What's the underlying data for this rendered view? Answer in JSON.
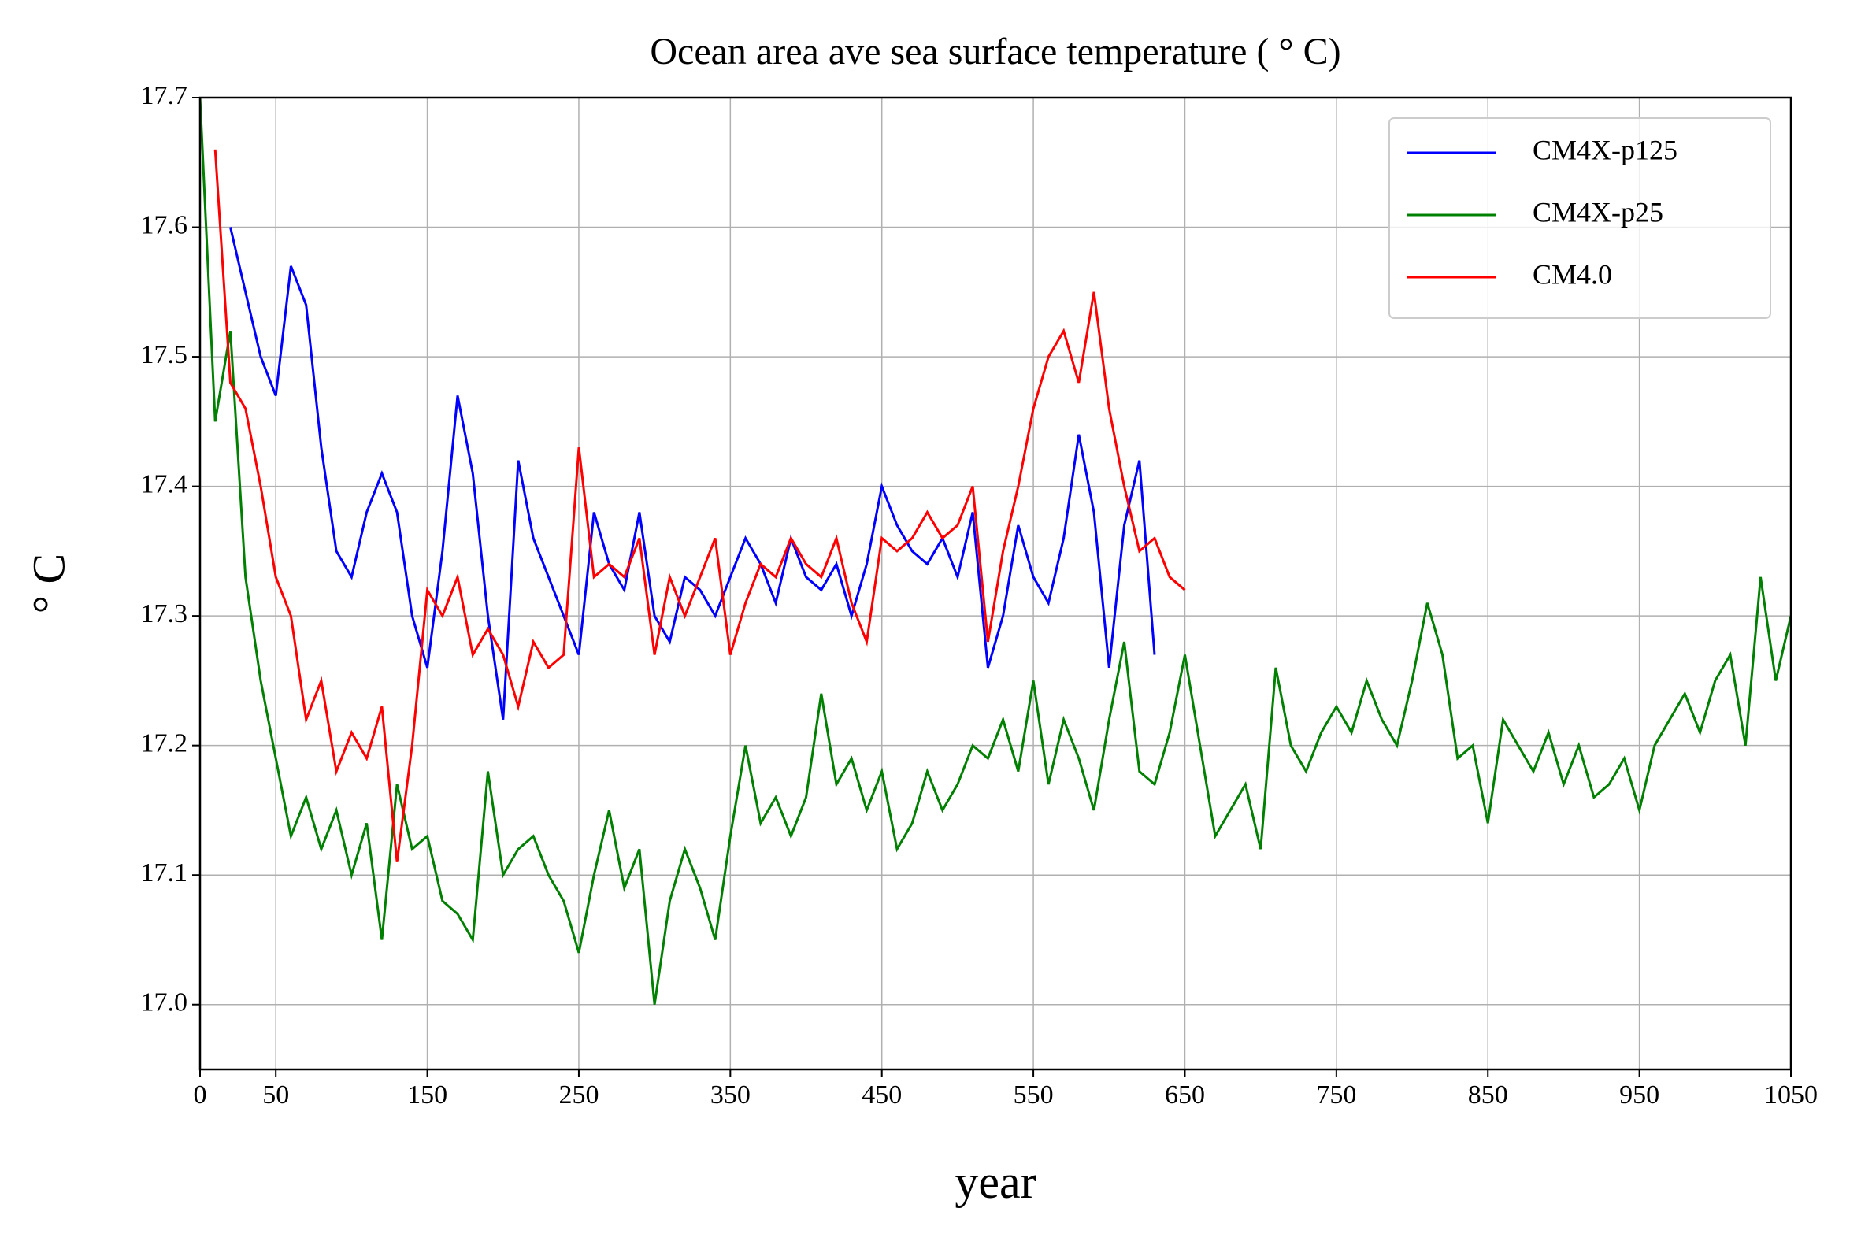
{
  "chart_data": {
    "type": "line",
    "title": "Ocean area ave sea surface temperature ( ° C)",
    "x_label": "year",
    "y_label": "° C",
    "x": [
      0,
      10,
      20,
      30,
      40,
      50,
      60,
      70,
      80,
      90,
      100,
      110,
      120,
      130,
      140,
      150,
      160,
      170,
      180,
      190,
      200,
      210,
      220,
      230,
      240,
      250,
      260,
      270,
      280,
      290,
      300,
      310,
      320,
      330,
      340,
      350,
      360,
      370,
      380,
      390,
      400,
      410,
      420,
      430,
      440,
      450,
      460,
      470,
      480,
      490,
      500,
      510,
      520,
      530,
      540,
      550,
      560,
      570,
      580,
      590,
      600,
      610,
      620,
      630,
      640,
      650,
      660,
      670,
      680,
      690,
      700,
      710,
      720,
      730,
      740,
      750,
      760,
      770,
      780,
      790,
      800,
      810,
      820,
      830,
      840,
      850,
      860,
      870,
      880,
      890,
      900,
      910,
      920,
      930,
      940,
      950,
      960,
      970,
      980,
      990,
      1000,
      1010,
      1020,
      1030,
      1040,
      1050
    ],
    "series": [
      {
        "name": "CM4X-p125",
        "color": "#0000ff",
        "values": [
          null,
          null,
          17.6,
          17.55,
          17.5,
          17.47,
          17.57,
          17.54,
          17.43,
          17.35,
          17.33,
          17.38,
          17.41,
          17.38,
          17.3,
          17.26,
          17.35,
          17.47,
          17.41,
          17.3,
          17.22,
          17.42,
          17.36,
          17.33,
          17.3,
          17.27,
          17.38,
          17.34,
          17.32,
          17.38,
          17.3,
          17.28,
          17.33,
          17.32,
          17.3,
          17.33,
          17.36,
          17.34,
          17.31,
          17.36,
          17.33,
          17.32,
          17.34,
          17.3,
          17.34,
          17.4,
          17.37,
          17.35,
          17.34,
          17.36,
          17.33,
          17.38,
          17.26,
          17.3,
          17.37,
          17.33,
          17.31,
          17.36,
          17.44,
          17.38,
          17.26,
          17.37,
          17.42,
          17.27,
          null,
          null,
          null,
          null,
          null,
          null,
          null,
          null,
          null,
          null,
          null,
          null,
          null,
          null,
          null,
          null,
          null,
          null,
          null,
          null,
          null,
          null,
          null,
          null,
          null,
          null,
          null,
          null,
          null,
          null,
          null,
          null,
          null,
          null,
          null,
          null,
          null,
          null,
          null,
          null,
          null,
          null
        ]
      },
      {
        "name": "CM4X-p25",
        "color": "#008000",
        "values": [
          17.7,
          17.45,
          17.52,
          17.33,
          17.25,
          17.19,
          17.13,
          17.16,
          17.12,
          17.15,
          17.1,
          17.14,
          17.05,
          17.17,
          17.12,
          17.13,
          17.08,
          17.07,
          17.05,
          17.18,
          17.1,
          17.12,
          17.13,
          17.1,
          17.08,
          17.04,
          17.1,
          17.15,
          17.09,
          17.12,
          17.0,
          17.08,
          17.12,
          17.09,
          17.05,
          17.13,
          17.2,
          17.14,
          17.16,
          17.13,
          17.16,
          17.24,
          17.17,
          17.19,
          17.15,
          17.18,
          17.12,
          17.14,
          17.18,
          17.15,
          17.17,
          17.2,
          17.19,
          17.22,
          17.18,
          17.25,
          17.17,
          17.22,
          17.19,
          17.15,
          17.22,
          17.28,
          17.18,
          17.17,
          17.21,
          17.27,
          17.2,
          17.13,
          17.15,
          17.17,
          17.12,
          17.26,
          17.2,
          17.18,
          17.21,
          17.23,
          17.21,
          17.25,
          17.22,
          17.2,
          17.25,
          17.31,
          17.27,
          17.19,
          17.2,
          17.14,
          17.22,
          17.2,
          17.18,
          17.21,
          17.17,
          17.2,
          17.16,
          17.17,
          17.19,
          17.15,
          17.2,
          17.22,
          17.24,
          17.21,
          17.25,
          17.27,
          17.2,
          17.33,
          17.25,
          17.3
        ]
      },
      {
        "name": "CM4.0",
        "color": "#ff0000",
        "values": [
          null,
          17.66,
          17.48,
          17.46,
          17.4,
          17.33,
          17.3,
          17.22,
          17.25,
          17.18,
          17.21,
          17.19,
          17.23,
          17.11,
          17.2,
          17.32,
          17.3,
          17.33,
          17.27,
          17.29,
          17.27,
          17.23,
          17.28,
          17.26,
          17.27,
          17.43,
          17.33,
          17.34,
          17.33,
          17.36,
          17.27,
          17.33,
          17.3,
          17.33,
          17.36,
          17.27,
          17.31,
          17.34,
          17.33,
          17.36,
          17.34,
          17.33,
          17.36,
          17.31,
          17.28,
          17.36,
          17.35,
          17.36,
          17.38,
          17.36,
          17.37,
          17.4,
          17.28,
          17.35,
          17.4,
          17.46,
          17.5,
          17.52,
          17.48,
          17.55,
          17.46,
          17.4,
          17.35,
          17.36,
          17.33,
          17.32,
          null,
          null,
          null,
          null,
          null,
          null,
          null,
          null,
          null,
          null,
          null,
          null,
          null,
          null,
          null,
          null,
          null,
          null,
          null,
          null,
          null,
          null,
          null,
          null,
          null,
          null,
          null,
          null,
          null,
          null,
          null,
          null,
          null,
          null,
          null,
          null,
          null,
          null,
          null,
          null
        ]
      }
    ],
    "xlim": [
      0,
      1050
    ],
    "xticks": [
      0,
      50,
      150,
      250,
      350,
      450,
      550,
      650,
      750,
      850,
      950,
      1050
    ],
    "ylim": [
      16.95,
      17.7
    ],
    "yticks": [
      {
        "value": 17,
        "label": "17.0"
      },
      17.1,
      17.2,
      17.3,
      17.4,
      17.5,
      17.6,
      17.7
    ],
    "grid": true,
    "legend": "upper right"
  }
}
